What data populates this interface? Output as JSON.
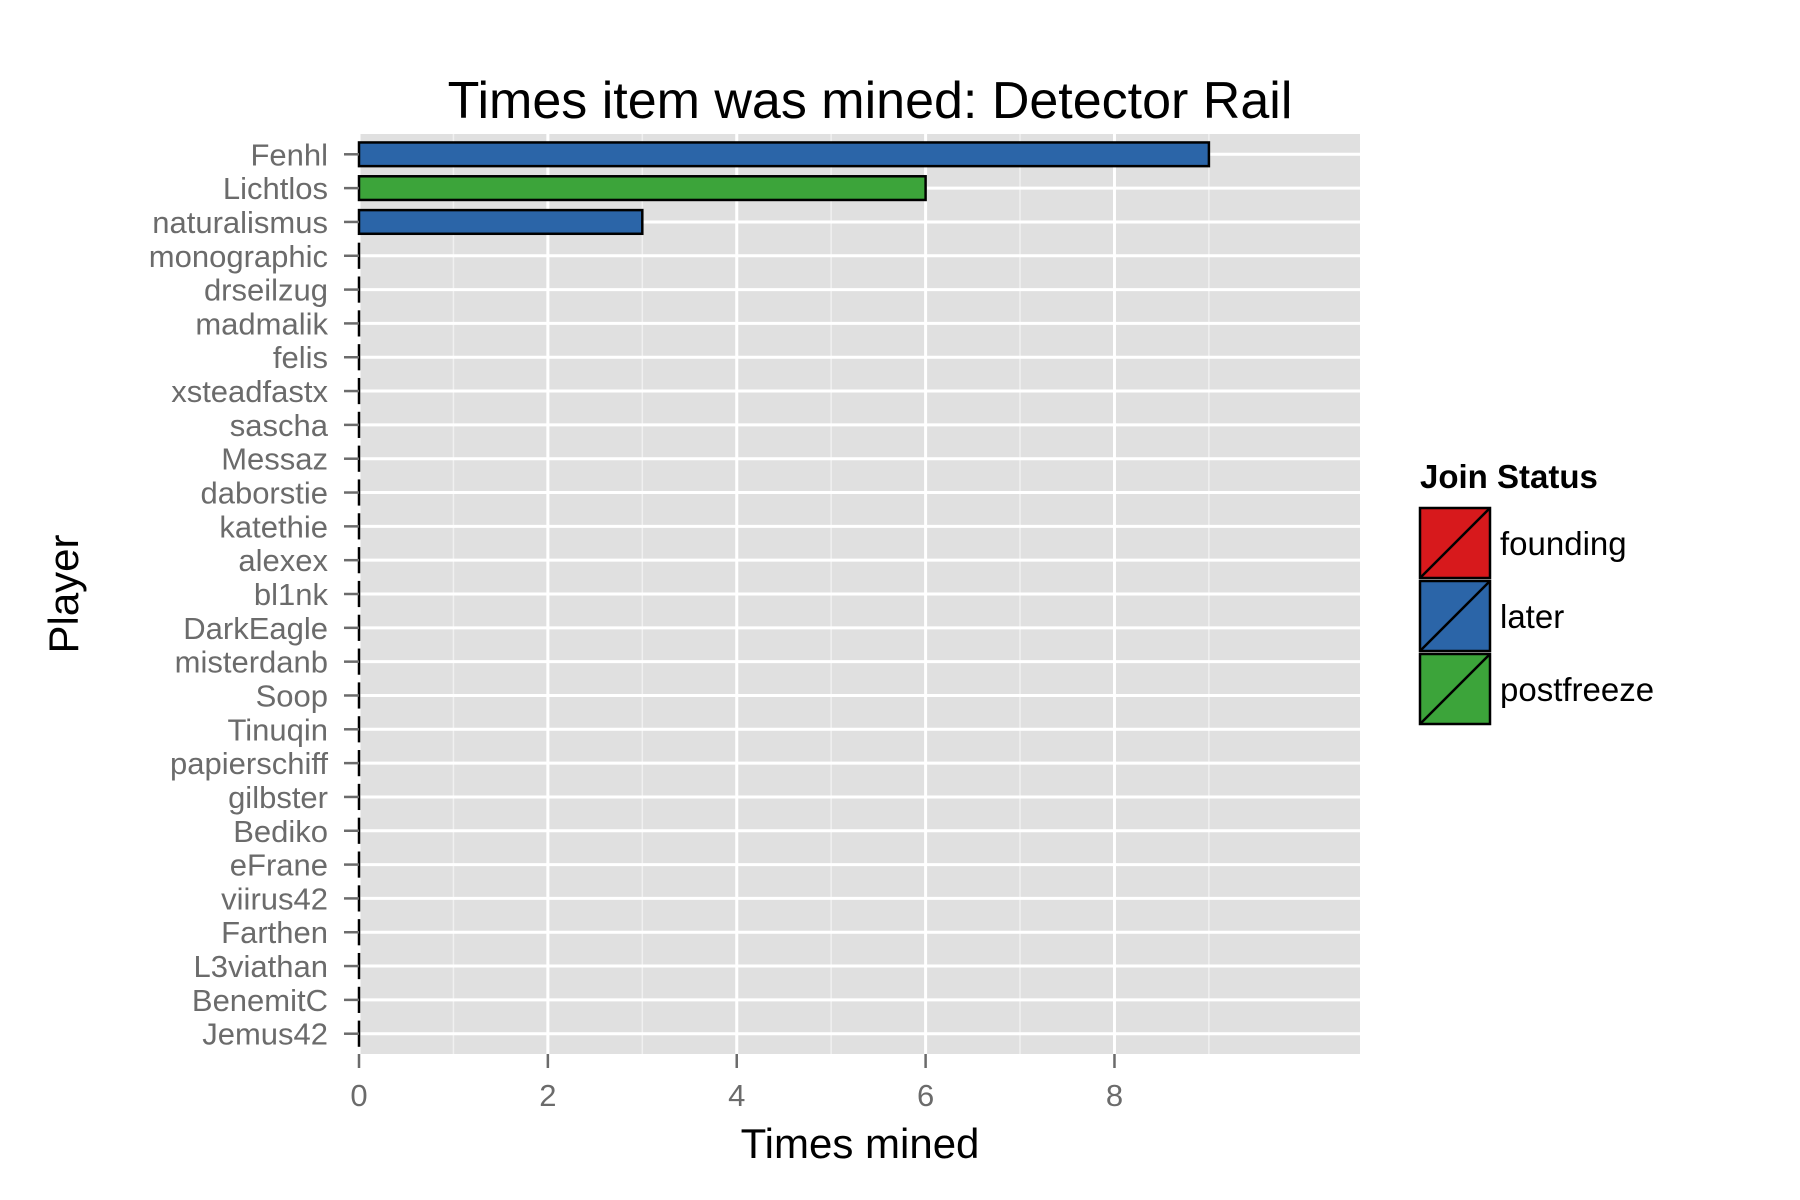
{
  "chart_data": {
    "type": "bar",
    "orientation": "horizontal",
    "title": "Times item was mined: Detector Rail",
    "xlabel": "Times mined",
    "ylabel": "Player",
    "xlim": [
      0,
      10.6
    ],
    "xticks": [
      0,
      2,
      4,
      6,
      8
    ],
    "grid": true,
    "legend": {
      "title": "Join Status",
      "placement": "right",
      "entries": [
        {
          "name": "founding",
          "color": "#d7191c"
        },
        {
          "name": "later",
          "color": "#2b65a8"
        },
        {
          "name": "postfreeze",
          "color": "#3ca43a"
        }
      ]
    },
    "categories": [
      "Fenhl",
      "Lichtlos",
      "naturalismus",
      "monographic",
      "drseilzug",
      "madmalik",
      "felis",
      "xsteadfastx",
      "sascha",
      "Messaz",
      "daborstie",
      "katethie",
      "alexex",
      "bl1nk",
      "DarkEagle",
      "misterdanb",
      "Soop",
      "Tinuqin",
      "papierschiff",
      "gilbster",
      "Bediko",
      "eFrane",
      "viirus42",
      "Farthen",
      "L3viathan",
      "BenemitC",
      "Jemus42"
    ],
    "values": [
      9,
      6,
      3,
      0,
      0,
      0,
      0,
      0,
      0,
      0,
      0,
      0,
      0,
      0,
      0,
      0,
      0,
      0,
      0,
      0,
      0,
      0,
      0,
      0,
      0,
      0,
      0
    ],
    "status": [
      "later",
      "postfreeze",
      "later",
      "later",
      "later",
      "later",
      "later",
      "later",
      "later",
      "later",
      "later",
      "later",
      "later",
      "later",
      "later",
      "later",
      "later",
      "later",
      "later",
      "later",
      "later",
      "later",
      "later",
      "later",
      "later",
      "later",
      "later"
    ]
  }
}
